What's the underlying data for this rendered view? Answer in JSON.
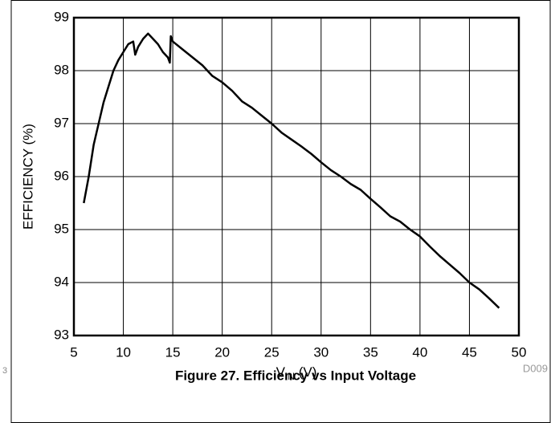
{
  "chart_data": {
    "type": "line",
    "caption": "Figure 27. Efficiency vs Input Voltage",
    "code": "D009",
    "edge_text": "3",
    "y_label": "EFFICIENCY (%)",
    "x_label": [
      "V",
      "IN",
      " (V)"
    ],
    "xlim": [
      5,
      50
    ],
    "xticks": [
      5,
      10,
      15,
      20,
      25,
      30,
      35,
      40,
      45,
      50
    ],
    "ylim": [
      93,
      99
    ],
    "yticks": [
      93,
      94,
      95,
      96,
      97,
      98,
      99
    ],
    "grid": true,
    "series": [
      {
        "name": "Efficiency",
        "color": "#000000",
        "x": [
          6,
          6.5,
          7,
          7.5,
          8,
          8.5,
          9,
          9.5,
          10,
          10.5,
          11,
          11.2,
          11.5,
          12,
          12.5,
          13,
          13.5,
          14,
          14.5,
          14.7,
          14.8,
          15,
          16,
          17,
          18,
          19,
          20,
          21,
          22,
          23,
          24,
          25,
          26,
          27,
          28,
          29,
          30,
          31,
          32,
          33,
          34,
          35,
          36,
          37,
          38,
          39,
          40,
          41,
          42,
          43,
          44,
          45,
          46,
          47,
          48
        ],
        "values": [
          95.5,
          96.0,
          96.6,
          97.0,
          97.4,
          97.7,
          98.0,
          98.2,
          98.35,
          98.5,
          98.55,
          98.3,
          98.45,
          98.6,
          98.7,
          98.6,
          98.5,
          98.35,
          98.25,
          98.15,
          98.65,
          98.55,
          98.4,
          98.25,
          98.1,
          97.9,
          97.78,
          97.62,
          97.42,
          97.3,
          97.15,
          97.0,
          96.83,
          96.7,
          96.57,
          96.43,
          96.27,
          96.12,
          96.0,
          95.86,
          95.75,
          95.58,
          95.42,
          95.25,
          95.15,
          95.0,
          94.87,
          94.68,
          94.5,
          94.34,
          94.18,
          94.0,
          93.87,
          93.7,
          93.52
        ]
      }
    ]
  }
}
